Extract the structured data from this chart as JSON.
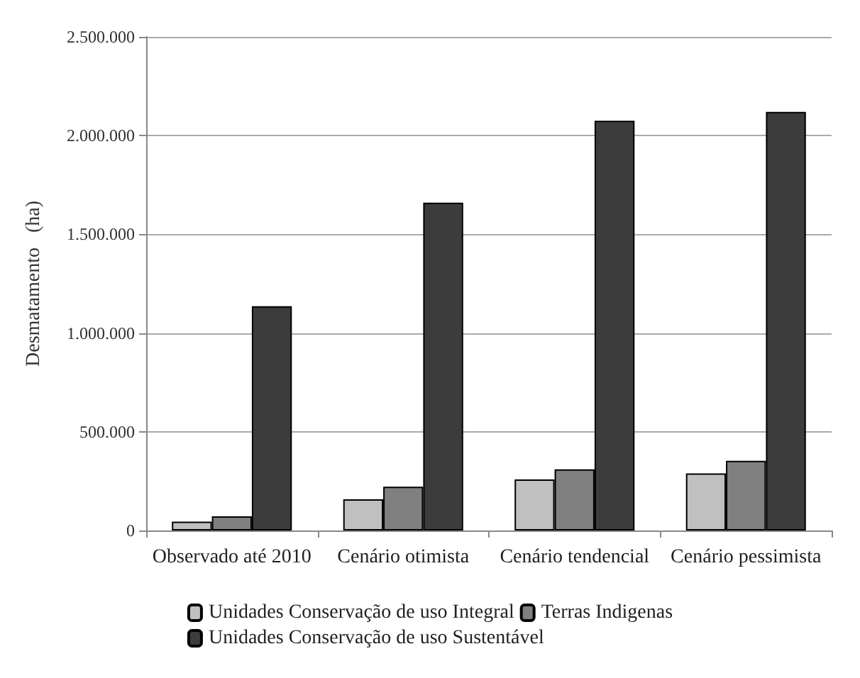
{
  "chart_data": {
    "type": "bar",
    "ylabel": "Desmatamento   (ha)",
    "categories": [
      "Observado até 2010",
      "Cenário otimista",
      "Cenário tendencial",
      "Cenário pessimista"
    ],
    "series": [
      {
        "name": "Unidades Conservação de uso Integral",
        "color": "#c0c0c0",
        "values": [
          45000,
          158000,
          259000,
          289000
        ]
      },
      {
        "name": "Terras Indigenas",
        "color": "#808080",
        "values": [
          72000,
          222000,
          310000,
          353000
        ]
      },
      {
        "name": "Unidades Conservação de uso Sustentável",
        "color": "#3c3c3c",
        "values": [
          1136000,
          1660000,
          2075000,
          2120000
        ]
      }
    ],
    "ylim": [
      0,
      2500000
    ],
    "yticks": [
      {
        "value": 0,
        "label": "0"
      },
      {
        "value": 500000,
        "label": "500.000"
      },
      {
        "value": 1000000,
        "label": "1.000.000"
      },
      {
        "value": 1500000,
        "label": "1.500.000"
      },
      {
        "value": 2000000,
        "label": "2.000.000"
      },
      {
        "value": 2500000,
        "label": "2.500.000"
      }
    ],
    "grid": "y",
    "legend": "bottom"
  }
}
